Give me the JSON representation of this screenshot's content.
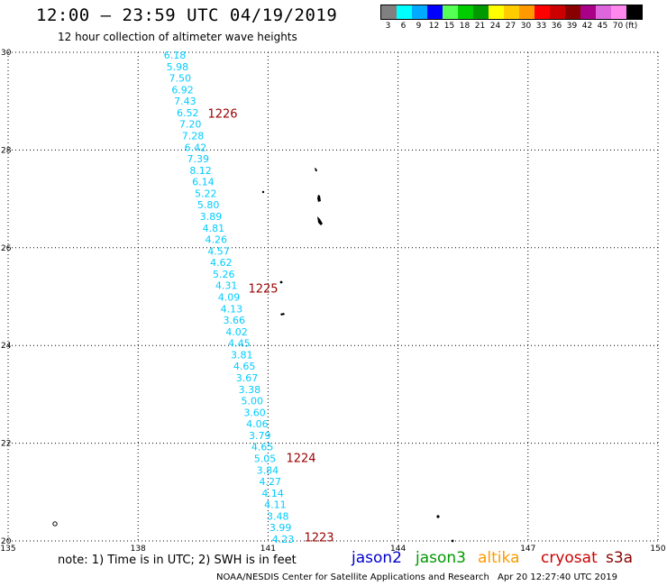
{
  "title": "12:00 — 23:59 UTC 04/19/2019",
  "subtitle": "12 hour collection of altimeter wave heights",
  "legend": {
    "colors": [
      "#808080",
      "#00ffff",
      "#00aaff",
      "#0000ff",
      "#55ff55",
      "#00cc00",
      "#009900",
      "#ffff00",
      "#ffcc00",
      "#ff9900",
      "#ff0000",
      "#cc0000",
      "#880000",
      "#aa0088",
      "#dd66dd",
      "#ff88ee",
      "#000000"
    ],
    "labels": [
      "3",
      "6",
      "9",
      "12",
      "15",
      "18",
      "21",
      "24",
      "27",
      "30",
      "33",
      "36",
      "39",
      "42",
      "45",
      "70",
      "(ft)"
    ]
  },
  "axes": {
    "lon_ticks": [
      "135",
      "138",
      "141",
      "144",
      "147",
      "150"
    ],
    "lat_ticks": [
      "30",
      "28",
      "26",
      "24",
      "22",
      "20"
    ]
  },
  "chart_data": {
    "type": "scatter",
    "x_range": [
      135,
      150
    ],
    "y_range": [
      20,
      30
    ],
    "series": [
      {
        "values": [
          "6.18",
          "5.98",
          "7.50",
          "6.92",
          "7.43",
          "6.52",
          "7.20",
          "7.28",
          "6.42",
          "7.39",
          "8.12",
          "6.14",
          "5.22",
          "5.80",
          "3.89",
          "4.81",
          "4.26",
          "4.57",
          "4.62",
          "5.26",
          "4.31",
          "4.09",
          "4.13",
          "3.66",
          "4.02",
          "4.45",
          "3.81",
          "4.65",
          "3.67",
          "3.38",
          "5.00",
          "3.60",
          "4.06",
          "3.79",
          "4.65",
          "5.05",
          "3.84",
          "4.27",
          "4.14",
          "4.11",
          "3.48",
          "3.99",
          "4.23"
        ],
        "color": "#00ccff"
      }
    ],
    "time_labels": [
      "1226",
      "1225",
      "1224",
      "1223"
    ],
    "time_label_color": "#990000"
  },
  "footer": {
    "note": "note: 1) Time is in UTC; 2) SWH is in feet",
    "missions": [
      {
        "name": "jason2",
        "color": "#0000cc"
      },
      {
        "name": "jason3",
        "color": "#009900"
      },
      {
        "name": "altika",
        "color": "#ff9900"
      },
      {
        "name": "cryosat",
        "color": "#cc0000"
      },
      {
        "name": "s3a",
        "color": "#880000"
      }
    ],
    "credit": "NOAA/NESDIS Center for Satellite Applications and Research",
    "timestamp": "Apr 20 12:27:40 UTC 2019"
  }
}
